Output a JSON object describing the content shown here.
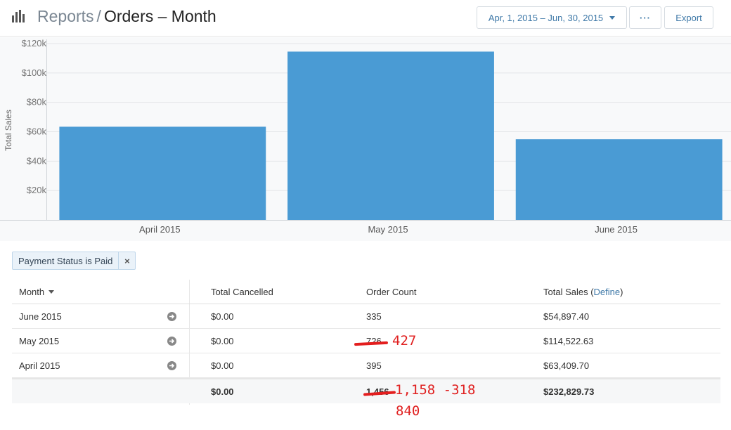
{
  "header": {
    "crumb": "Reports",
    "separator": "/",
    "title": "Orders – Month",
    "date_range": "Apr, 1, 2015 – Jun, 30, 2015",
    "more_label": "···",
    "export_label": "Export"
  },
  "chart_data": {
    "type": "bar",
    "categories": [
      "April 2015",
      "May 2015",
      "June 2015"
    ],
    "values": [
      63409.7,
      114522.63,
      54897.4
    ],
    "ylabel": "Total Sales",
    "ylim": [
      0,
      120000
    ],
    "yticks": [
      "$20k",
      "$40k",
      "$60k",
      "$80k",
      "$100k",
      "$120k"
    ],
    "ytick_values": [
      20000,
      40000,
      60000,
      80000,
      100000,
      120000
    ],
    "color": "#4a9bd4"
  },
  "filter": {
    "label": "Payment Status is Paid",
    "close": "×"
  },
  "table": {
    "headers": {
      "month": "Month",
      "cancelled": "Total Cancelled",
      "count": "Order Count",
      "sales": "Total Sales (",
      "define": "Define",
      "sales_close": ")"
    },
    "rows": [
      {
        "month": "June 2015",
        "cancelled": "$0.00",
        "count": "335",
        "sales": "$54,897.40"
      },
      {
        "month": "May 2015",
        "cancelled": "$0.00",
        "count": "726",
        "sales": "$114,522.63"
      },
      {
        "month": "April 2015",
        "cancelled": "$0.00",
        "count": "395",
        "sales": "$63,409.70"
      }
    ],
    "total": {
      "cancelled": "$0.00",
      "count": "1,456",
      "sales": "$232,829.73"
    }
  },
  "annotations": {
    "may_fix": "427",
    "total_fix": "1,158 -318",
    "total_result": "840"
  },
  "colors": {
    "accent": "#3f79a8",
    "bar": "#4a9bd4",
    "annotation": "#e02020"
  }
}
